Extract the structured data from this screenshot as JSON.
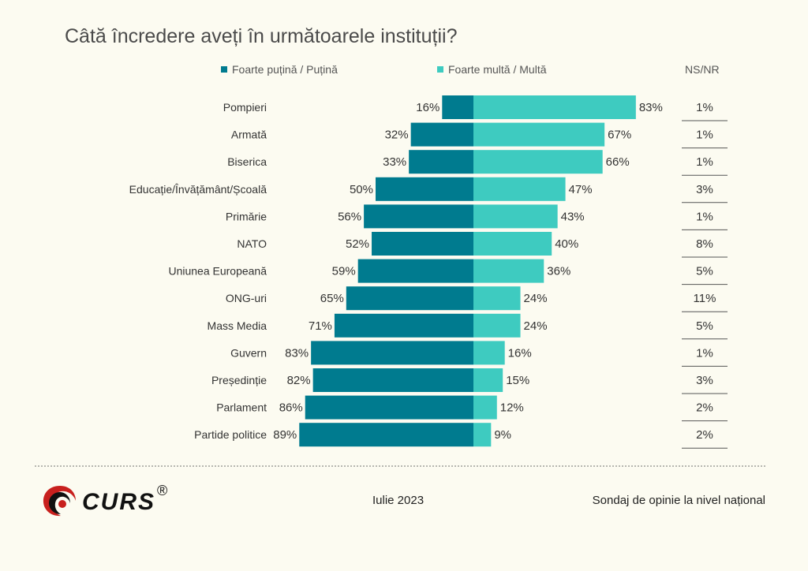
{
  "title": "Câtă încredere aveți în următoarele instituții?",
  "legend": {
    "low_label": "Foarte puțină / Puțină",
    "high_label": "Foarte multă / Multă",
    "nsnr_label": "NS/NR"
  },
  "colors": {
    "low": "#007b8f",
    "high": "#3ecbc0",
    "background": "#fcfbf1"
  },
  "footer": {
    "logo_text": "CURS",
    "logo_reg": "®",
    "date": "Iulie 2023",
    "source": "Sondaj de opinie la nivel național"
  },
  "chart_data": {
    "type": "bar",
    "orientation": "horizontal-diverging",
    "title": "Câtă încredere aveți în următoarele instituții?",
    "categories": [
      "Pompieri",
      "Armată",
      "Biserica",
      "Educație/Învățământ/Școală",
      "Primărie",
      "NATO",
      "Uniunea Europeană",
      "ONG-uri",
      "Mass Media",
      "Guvern",
      "Președinție",
      "Parlament",
      "Partide politice"
    ],
    "series": [
      {
        "name": "Foarte puțină / Puțină",
        "values": [
          16,
          32,
          33,
          50,
          56,
          52,
          59,
          65,
          71,
          83,
          82,
          86,
          89
        ]
      },
      {
        "name": "Foarte multă / Multă",
        "values": [
          83,
          67,
          66,
          47,
          43,
          40,
          36,
          24,
          24,
          16,
          15,
          12,
          9
        ]
      },
      {
        "name": "NS/NR",
        "values": [
          1,
          1,
          1,
          3,
          1,
          8,
          5,
          11,
          5,
          1,
          3,
          2,
          2
        ]
      }
    ],
    "low_labels": [
      "16%",
      "32%",
      "33%",
      "50%",
      "56%",
      "52%",
      "59%",
      "65%",
      "71%",
      "83%",
      "82%",
      "86%",
      "89%"
    ],
    "high_labels": [
      "83%",
      "67%",
      "66%",
      "47%",
      "43%",
      "40%",
      "36%",
      "24%",
      "24%",
      "16%",
      "15%",
      "12%",
      "9%"
    ],
    "nsnr_labels": [
      "1%",
      "1%",
      "1%",
      "3%",
      "1%",
      "8%",
      "5%",
      "11%",
      "5%",
      "1%",
      "3%",
      "2%",
      "2%"
    ],
    "unit": "%",
    "legend_position": "top",
    "grid": false
  }
}
